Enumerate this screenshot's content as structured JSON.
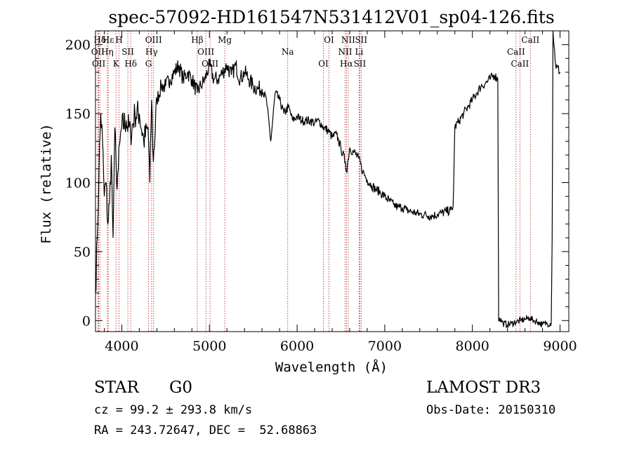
{
  "chart_data": {
    "type": "line",
    "title": "spec-57092-HD161547N531412V01_sp04-126.fits",
    "xlabel": "Wavelength (Å)",
    "ylabel": "Flux (relative)",
    "xlim": [
      3700,
      9100
    ],
    "ylim": [
      -8,
      210
    ],
    "xticks": [
      4000,
      5000,
      6000,
      7000,
      8000,
      9000
    ],
    "yticks": [
      0,
      50,
      100,
      150,
      200
    ],
    "grid": false,
    "line_color": "#000000",
    "marker_color": "#b22222",
    "series": [
      {
        "x": [
          3700,
          3720,
          3740,
          3760,
          3780,
          3800,
          3820,
          3840,
          3860,
          3880,
          3900,
          3920,
          3940,
          3960,
          3980,
          4000,
          4050,
          4100,
          4150,
          4200,
          4250,
          4300,
          4320,
          4340,
          4360,
          4400,
          4450,
          4500,
          4550,
          4600,
          4650,
          4700,
          4750,
          4800,
          4861,
          4900,
          4950,
          5000,
          5050,
          5100,
          5150,
          5200,
          5250,
          5300,
          5350,
          5400,
          5450,
          5500,
          5550,
          5600,
          5650,
          5700,
          5750,
          5800,
          5850,
          5900,
          5950,
          6000,
          6050,
          6100,
          6150,
          6200,
          6250,
          6300,
          6350,
          6400,
          6450,
          6500,
          6550,
          6563,
          6600,
          6650,
          6700,
          6750,
          6800,
          6850,
          6900,
          6950,
          7000,
          7050,
          7100,
          7150,
          7200,
          7250,
          7300,
          7350,
          7400,
          7450,
          7500,
          7550,
          7600,
          7650,
          7700,
          7750,
          7770,
          7780,
          7800,
          7850,
          7900,
          7950,
          8000,
          8050,
          8100,
          8150,
          8200,
          8250,
          8290,
          8300,
          8310,
          8350,
          8400,
          8450,
          8500,
          8550,
          8600,
          8650,
          8700,
          8750,
          8800,
          8850,
          8900,
          8910,
          8920,
          8950,
          9000
        ],
        "y": [
          20,
          60,
          110,
          150,
          130,
          90,
          100,
          70,
          85,
          120,
          60,
          140,
          100,
          110,
          130,
          140,
          145,
          135,
          150,
          150,
          130,
          140,
          100,
          160,
          115,
          160,
          170,
          170,
          175,
          180,
          185,
          175,
          180,
          175,
          165,
          170,
          175,
          185,
          175,
          175,
          180,
          185,
          178,
          185,
          175,
          180,
          175,
          170,
          168,
          168,
          160,
          130,
          165,
          160,
          150,
          155,
          145,
          148,
          145,
          145,
          145,
          143,
          145,
          140,
          138,
          133,
          135,
          125,
          115,
          108,
          125,
          122,
          118,
          108,
          102,
          98,
          95,
          93,
          90,
          87,
          84,
          82,
          82,
          80,
          79,
          78,
          77,
          77,
          76,
          76,
          77,
          78,
          79,
          80,
          80,
          82,
          140,
          145,
          150,
          155,
          160,
          165,
          170,
          172,
          175,
          178,
          175,
          0,
          2,
          -2,
          -3,
          -2,
          -1,
          0,
          1,
          2,
          0,
          -1,
          -3,
          -2,
          -2,
          60,
          210,
          185,
          180
        ]
      }
    ],
    "lines": [
      {
        "label": "Hδ",
        "x": 3750
      },
      {
        "label": "OII",
        "x": 3727
      },
      {
        "label": "OII",
        "x": 3737
      },
      {
        "label": "Hε",
        "x": 3845
      },
      {
        "label": "Hη",
        "x": 3835
      },
      {
        "label": "K",
        "x": 3934
      },
      {
        "label": "H",
        "x": 3968
      },
      {
        "label": "SII",
        "x": 4069
      },
      {
        "label": "Hδ",
        "x": 4102
      },
      {
        "label": "OIII",
        "x": 4363
      },
      {
        "label": "Hγ",
        "x": 4340
      },
      {
        "label": "G",
        "x": 4305
      },
      {
        "label": "Hβ",
        "x": 4861
      },
      {
        "label": "OIII",
        "x": 4959
      },
      {
        "label": "OIII",
        "x": 5007
      },
      {
        "label": "Mg",
        "x": 5175
      },
      {
        "label": "Na",
        "x": 5893
      },
      {
        "label": "OI",
        "x": 6300
      },
      {
        "label": "OI",
        "x": 6364
      },
      {
        "label": "NII",
        "x": 6548
      },
      {
        "label": "Hα",
        "x": 6563
      },
      {
        "label": "NII",
        "x": 6583
      },
      {
        "label": "Li",
        "x": 6708
      },
      {
        "label": "SII",
        "x": 6716
      },
      {
        "label": "SII",
        "x": 6731
      },
      {
        "label": "CaII",
        "x": 8498
      },
      {
        "label": "CaII",
        "x": 8542
      },
      {
        "label": "CaII",
        "x": 8662
      }
    ]
  },
  "info": {
    "object_class": "STAR",
    "subclass": "G0",
    "survey": "LAMOST DR3",
    "velocity": "cz = 99.2 ± 293.8 km/s",
    "obs_date": "Obs-Date: 20150310",
    "coords": "RA = 243.72647, DEC =  52.68863"
  }
}
